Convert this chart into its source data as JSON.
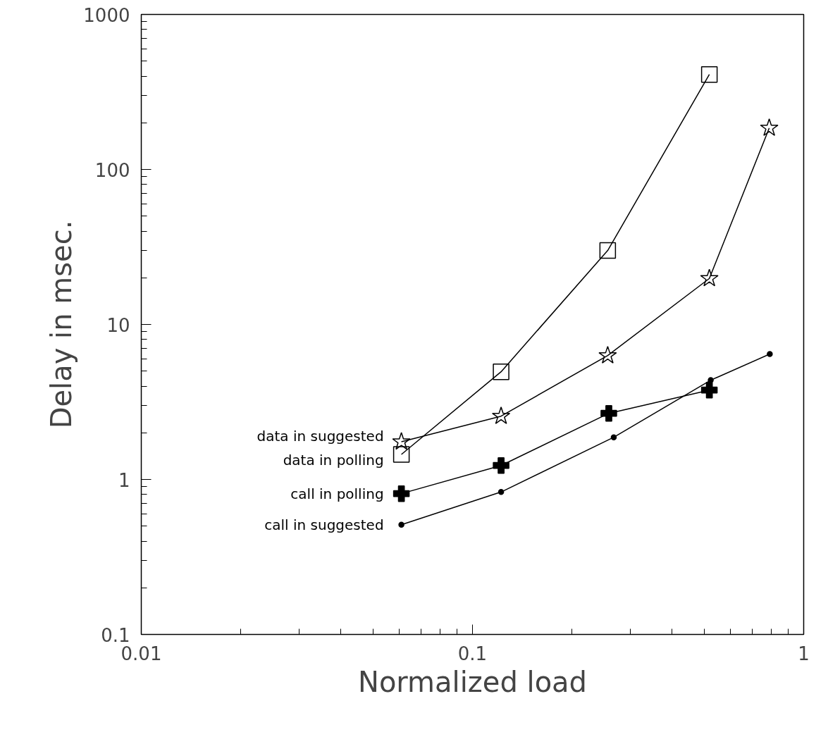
{
  "chart_data": {
    "type": "line",
    "xlabel": "Normalized load",
    "ylabel": "Delay in msec.",
    "log": "xy",
    "xlim": [
      0.01,
      1
    ],
    "ylim": [
      0.1,
      1000
    ],
    "xticks": [
      {
        "value": 0.01,
        "label": "0.01"
      },
      {
        "value": 0.1,
        "label": "0.1"
      },
      1
    ],
    "yticks": [
      {
        "value": 0.1,
        "label": "0.1"
      },
      1,
      10,
      100,
      1000
    ],
    "grid": false,
    "legend": "left",
    "line_style": "solid",
    "series": [
      {
        "name": "data in suggested",
        "marker": "star",
        "color": "#000000",
        "x": [
          0.061,
          0.122,
          0.256,
          0.519,
          0.787
        ],
        "values": [
          1.75,
          2.56,
          6.3,
          19.8,
          185
        ]
      },
      {
        "name": "data in polling",
        "marker": "square",
        "color": "#000000",
        "x": [
          0.061,
          0.122,
          0.256,
          0.519
        ],
        "values": [
          1.45,
          4.95,
          30,
          410
        ]
      },
      {
        "name": "call in polling",
        "marker": "cross",
        "color": "#000000",
        "x": [
          0.061,
          0.122,
          0.258,
          0.519
        ],
        "values": [
          0.81,
          1.23,
          2.67,
          3.77
        ]
      },
      {
        "name": "call in suggested",
        "marker": "circle",
        "color": "#000000",
        "x": [
          0.061,
          0.122,
          0.267,
          0.524,
          0.79
        ],
        "values": [
          0.51,
          0.83,
          1.87,
          4.37,
          6.44
        ]
      }
    ]
  }
}
